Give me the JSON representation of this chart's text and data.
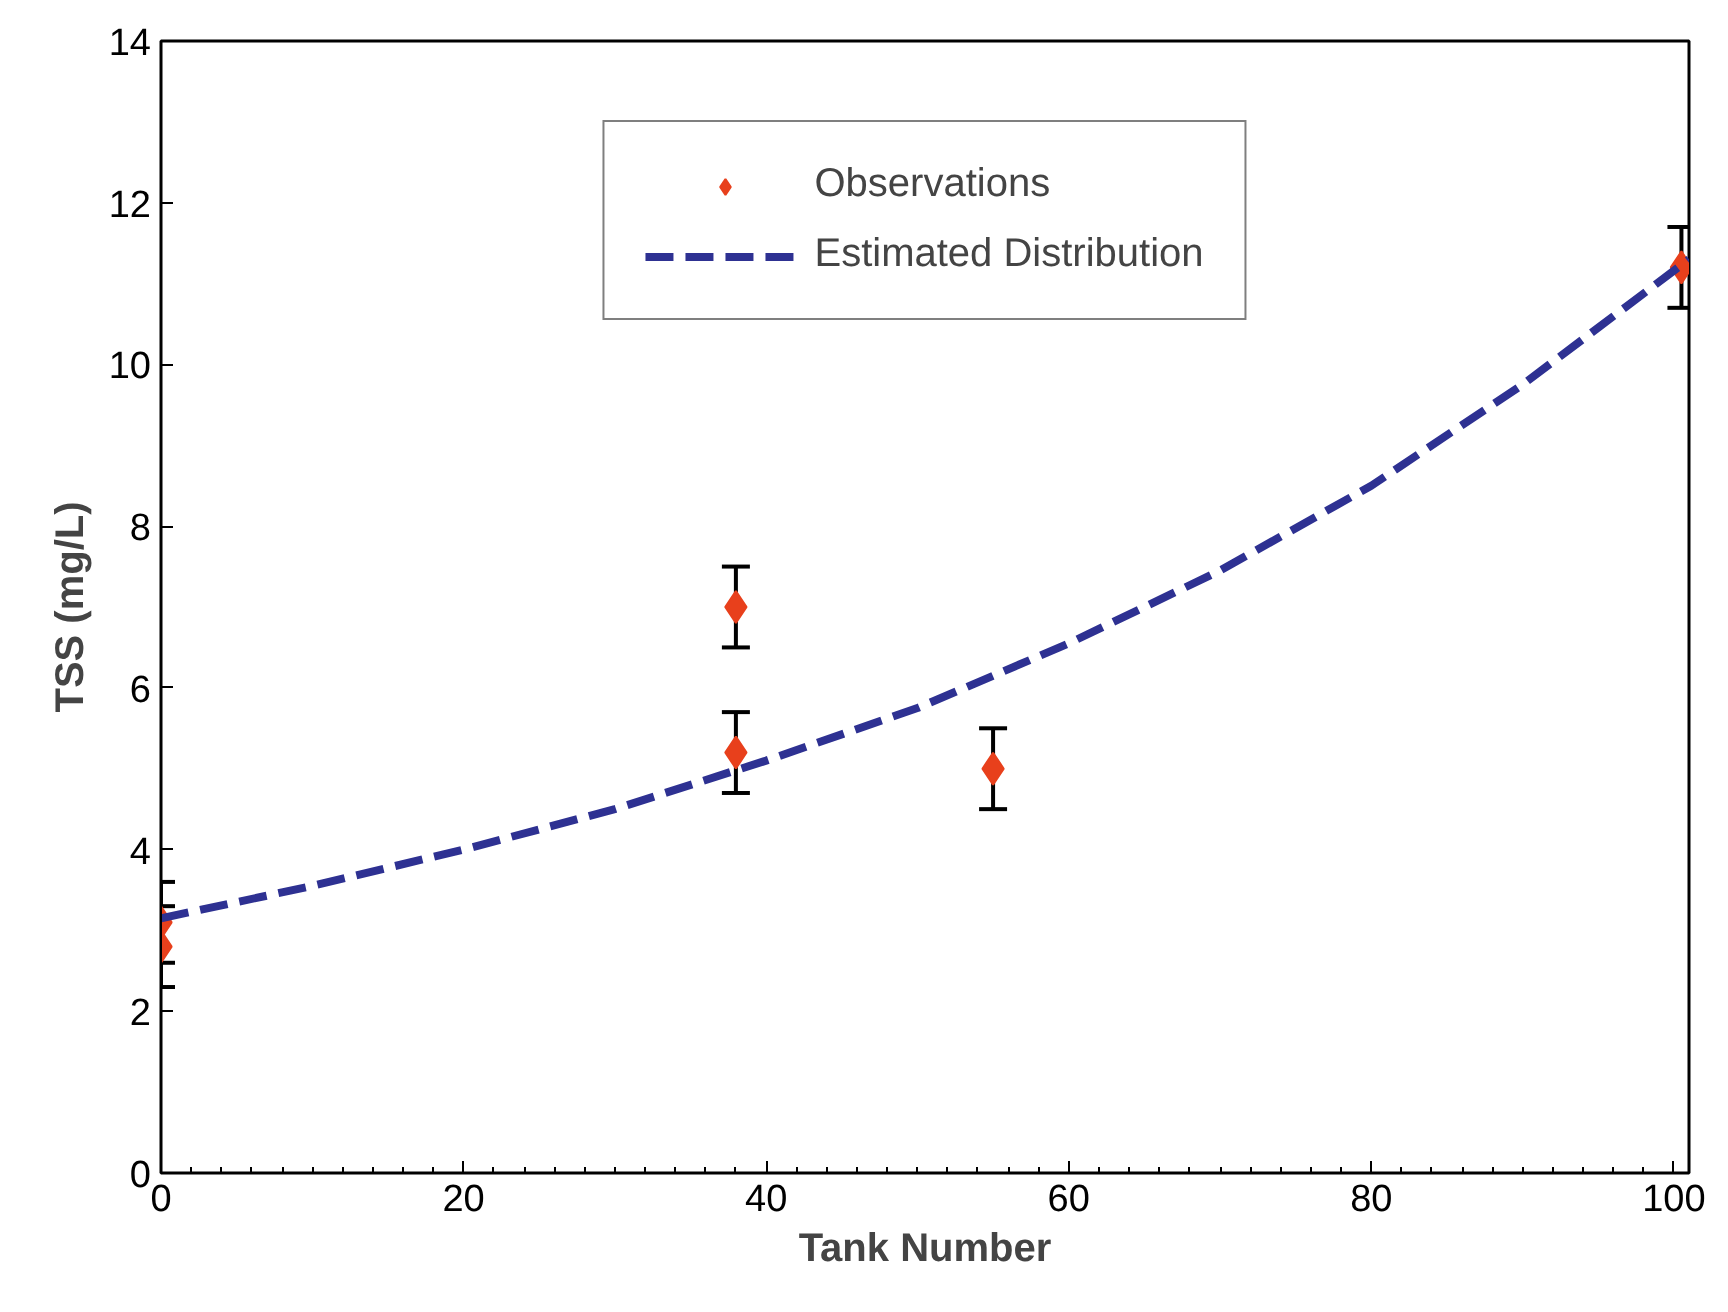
{
  "chart_data": {
    "type": "scatter",
    "xlabel": "Tank Number",
    "ylabel": "TSS (mg/L)",
    "xlim": [
      0,
      101
    ],
    "ylim": [
      0,
      14
    ],
    "xticks": [
      0,
      20,
      40,
      60,
      80,
      100
    ],
    "yticks": [
      0,
      2,
      4,
      6,
      8,
      10,
      12,
      14
    ],
    "legend": "top",
    "series": [
      {
        "name": "Observations",
        "marker": "diamond",
        "color": "#e8401c",
        "x": [
          0,
          0,
          38,
          38,
          55,
          100.5
        ],
        "values": [
          3.1,
          2.8,
          7.0,
          5.2,
          5.0,
          11.2
        ],
        "errors": [
          0.5,
          0.5,
          0.5,
          0.5,
          0.5,
          0.5
        ]
      },
      {
        "name": "Estimated Distribution",
        "type": "line",
        "line_style": "dashed",
        "color": "#2e3192",
        "x": [
          0,
          10,
          20,
          30,
          40,
          50,
          60,
          70,
          80,
          90,
          101
        ],
        "values": [
          3.15,
          3.55,
          4.0,
          4.5,
          5.1,
          5.75,
          6.55,
          7.45,
          8.5,
          9.75,
          11.3
        ]
      }
    ]
  }
}
